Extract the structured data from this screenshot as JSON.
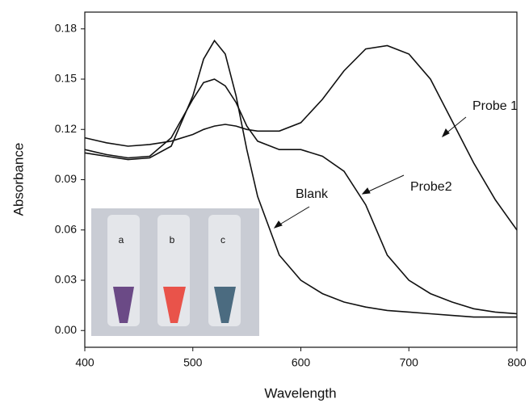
{
  "chart_data": {
    "type": "line",
    "x_label": "Wavelength",
    "y_label": "Absorbance",
    "x": [
      400,
      420,
      440,
      460,
      480,
      500,
      510,
      520,
      530,
      540,
      550,
      560,
      580,
      600,
      620,
      640,
      660,
      680,
      700,
      720,
      740,
      760,
      780,
      800
    ],
    "series": [
      {
        "name": "Blank",
        "color": "#111111",
        "values": [
          0.106,
          0.104,
          0.102,
          0.103,
          0.11,
          0.14,
          0.162,
          0.173,
          0.165,
          0.14,
          0.108,
          0.08,
          0.045,
          0.03,
          0.022,
          0.017,
          0.014,
          0.012,
          0.011,
          0.01,
          0.009,
          0.008,
          0.008,
          0.008
        ]
      },
      {
        "name": "Probe2",
        "color": "#111111",
        "values": [
          0.108,
          0.105,
          0.103,
          0.104,
          0.115,
          0.138,
          0.148,
          0.15,
          0.146,
          0.136,
          0.122,
          0.113,
          0.108,
          0.108,
          0.104,
          0.095,
          0.075,
          0.045,
          0.03,
          0.022,
          0.017,
          0.013,
          0.011,
          0.01
        ]
      },
      {
        "name": "Probe 1",
        "color": "#111111",
        "values": [
          0.115,
          0.112,
          0.11,
          0.111,
          0.113,
          0.117,
          0.12,
          0.122,
          0.123,
          0.122,
          0.12,
          0.119,
          0.119,
          0.124,
          0.138,
          0.155,
          0.168,
          0.17,
          0.165,
          0.15,
          0.125,
          0.1,
          0.078,
          0.06
        ]
      }
    ],
    "xlim": [
      400,
      800
    ],
    "xticks": [
      400,
      500,
      600,
      700,
      800
    ],
    "ylim": [
      -0.01,
      0.19
    ],
    "yticks": [
      {
        "value": 0,
        "label": "0.00"
      },
      0.03,
      0.06,
      0.09,
      0.12,
      0.15,
      0.18
    ],
    "inset_labels": [
      "a",
      "b",
      "c"
    ]
  }
}
